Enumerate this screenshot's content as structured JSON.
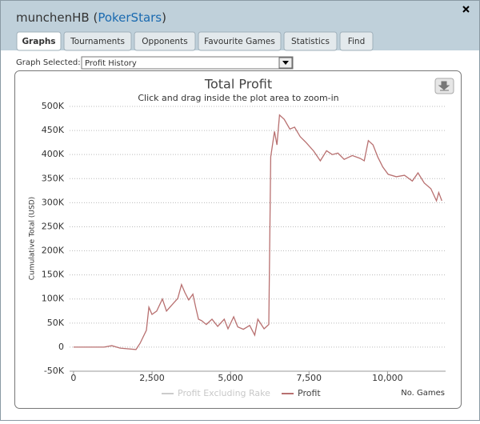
{
  "header": {
    "parts": [
      "munchenHB (",
      "PokerStars",
      ")"
    ]
  },
  "tabs": [
    "Graphs",
    "Tournaments",
    "Opponents",
    "Favourite Games",
    "Statistics",
    "Find"
  ],
  "graph_selector": {
    "label": "Graph Selected:",
    "value": "Profit History"
  },
  "chart_data": {
    "type": "line",
    "title": "Total Profit",
    "subtitle": "Click and drag inside the plot area to zoom-in",
    "y_label": "Cumulative Total (USD)",
    "x_label": "No. Games",
    "xlim": [
      -125,
      11850
    ],
    "ylim": [
      -50000,
      500000
    ],
    "xticks": [
      0,
      {
        "value": 2500,
        "label": "2,500"
      },
      {
        "value": 5000,
        "label": "5,000"
      },
      {
        "value": 7500,
        "label": "7,500"
      },
      {
        "value": 10000,
        "label": "10,000"
      }
    ],
    "yticks": [
      {
        "value": -50000,
        "label": "-50K"
      },
      0,
      {
        "value": 50000,
        "label": "50K"
      },
      {
        "value": 100000,
        "label": "100K"
      },
      {
        "value": 150000,
        "label": "150K"
      },
      {
        "value": 200000,
        "label": "200K"
      },
      {
        "value": 250000,
        "label": "250K"
      },
      {
        "value": 300000,
        "label": "300K"
      },
      {
        "value": 350000,
        "label": "350K"
      },
      {
        "value": 400000,
        "label": "400K"
      },
      {
        "value": 450000,
        "label": "450K"
      },
      {
        "value": 500000,
        "label": "500K"
      }
    ],
    "grid": true,
    "x": [
      0,
      970,
      1220,
      1480,
      1990,
      2120,
      2320,
      2400,
      2500,
      2650,
      2830,
      2960,
      3140,
      3320,
      3440,
      3550,
      3670,
      3800,
      3900,
      3980,
      4080,
      4230,
      4410,
      4590,
      4800,
      4920,
      5100,
      5230,
      5410,
      5610,
      5770,
      5870,
      6070,
      6220,
      6280,
      6400,
      6480,
      6560,
      6710,
      6890,
      7040,
      7220,
      7420,
      7650,
      7860,
      8060,
      8240,
      8420,
      8620,
      8880,
      9130,
      9260,
      9390,
      9540,
      9690,
      9850,
      10020,
      10280,
      10540,
      10790,
      10970,
      11170,
      11380,
      11560,
      11630,
      11730
    ],
    "series": [
      {
        "name": "Profit Excluding Rake",
        "color": "#cccccc",
        "visible": false
      },
      {
        "name": "Profit",
        "color": "#b87070",
        "visible": true,
        "values": [
          0,
          0,
          3000,
          -2000,
          -5000,
          8000,
          35000,
          83000,
          68000,
          75000,
          100000,
          75000,
          88000,
          101000,
          130000,
          113000,
          98000,
          110000,
          80000,
          58000,
          55000,
          47000,
          58000,
          43000,
          58000,
          38000,
          63000,
          42000,
          37000,
          45000,
          25000,
          58000,
          38000,
          47000,
          395000,
          448000,
          420000,
          482000,
          473000,
          453000,
          457000,
          437000,
          424000,
          407000,
          387000,
          408000,
          400000,
          403000,
          390000,
          398000,
          392000,
          387000,
          429000,
          420000,
          395000,
          374000,
          359000,
          354000,
          357000,
          345000,
          362000,
          341000,
          329000,
          304000,
          321000,
          304000
        ]
      }
    ]
  }
}
